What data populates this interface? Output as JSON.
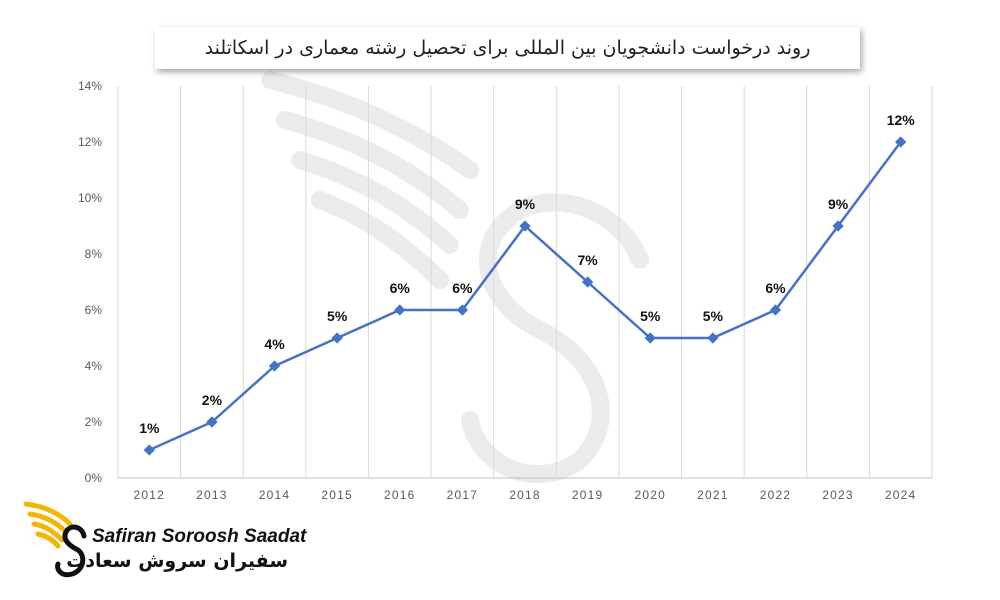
{
  "chart_data": {
    "type": "line",
    "title": "روند درخواست دانشجویان بین المللی برای تحصیل رشته معماری در اسکاتلند",
    "categories": [
      "2012",
      "2013",
      "2014",
      "2015",
      "2016",
      "2017",
      "2018",
      "2019",
      "2020",
      "2021",
      "2022",
      "2023",
      "2024"
    ],
    "series": [
      {
        "values": [
          1,
          2,
          4,
          5,
          6,
          6,
          9,
          7,
          5,
          5,
          6,
          9,
          12
        ]
      }
    ],
    "data_labels": [
      "1%",
      "2%",
      "4%",
      "5%",
      "6%",
      "6%",
      "9%",
      "7%",
      "5%",
      "5%",
      "6%",
      "9%",
      "12%"
    ],
    "y_ticks": [
      "0%",
      "2%",
      "4%",
      "6%",
      "8%",
      "10%",
      "12%",
      "14%"
    ],
    "ylim": [
      0,
      14
    ],
    "xlabel": "",
    "ylabel": "",
    "grid": "vertical",
    "legend": "none",
    "colors": {
      "line": "#4472C4",
      "grid": "#D9D9D9",
      "axis": "#BFBFBF"
    }
  },
  "logo": {
    "name_en": "Safiran Soroosh Saadat",
    "name_fa": "سفیران سروش سعادت",
    "icon": "winged-s-logo-icon",
    "accent": "#F2B705"
  },
  "watermark": {
    "icon": "winged-s-watermark-icon"
  }
}
